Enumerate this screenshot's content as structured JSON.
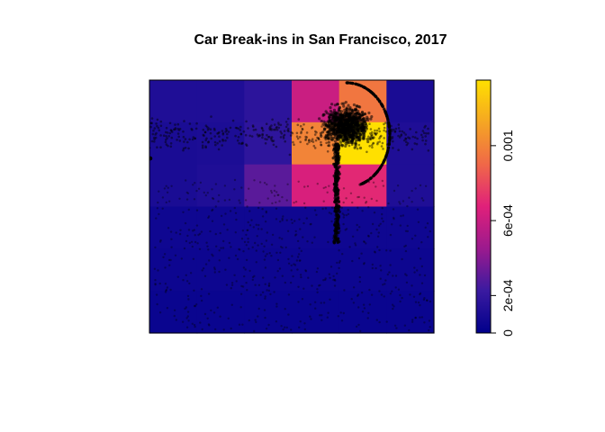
{
  "chart_data": {
    "type": "heatmap",
    "title": "Car Break-ins in San Francisco, 2017",
    "xlabel": "",
    "ylabel": "",
    "axes": "none",
    "grid": false,
    "legend": "right",
    "colorbar": {
      "range": [
        0,
        0.00135
      ],
      "ticks": [
        0,
        0.0002,
        0.0006,
        0.001
      ],
      "tick_labels": [
        "0",
        "2e-04",
        "6e-04",
        "0.001"
      ],
      "colors": [
        "#00008B",
        "#3A1AA0",
        "#9B1A8E",
        "#E0207A",
        "#F06848",
        "#F5A623",
        "#FFE000"
      ]
    },
    "density_grid": {
      "rows": 6,
      "cols": 6,
      "values": [
        [
          0.00012,
          0.00012,
          0.00017,
          0.0006,
          0.00095,
          0.0001
        ],
        [
          0.0001,
          0.00011,
          0.00018,
          0.001,
          0.00135,
          0.00012
        ],
        [
          0.0001,
          0.00012,
          0.0003,
          0.00065,
          0.0007,
          0.00012
        ],
        [
          6e-05,
          6e-05,
          6e-05,
          6e-05,
          6e-05,
          6e-05
        ],
        [
          5e-05,
          5e-05,
          5e-05,
          5e-05,
          5e-05,
          5e-05
        ],
        [
          4e-05,
          4e-05,
          4e-05,
          4e-05,
          4e-05,
          4e-05
        ]
      ]
    },
    "points": {
      "description": "",
      "color": "#000000"
    }
  }
}
